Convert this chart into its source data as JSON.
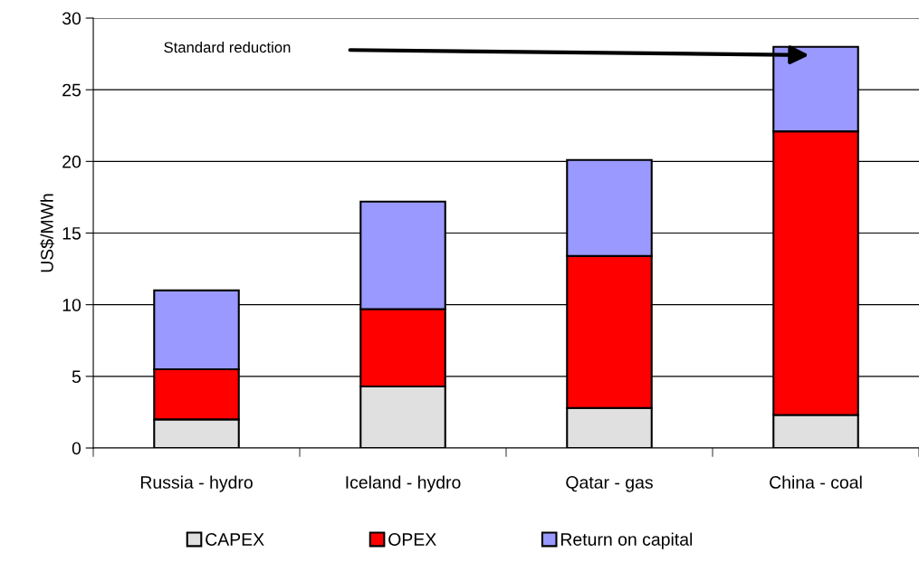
{
  "chart_data": {
    "type": "bar",
    "stacked": true,
    "ylabel": "US$/MWh",
    "categories": [
      "Russia - hydro",
      "Iceland - hydro",
      "Qatar - gas",
      "China - coal"
    ],
    "series": [
      {
        "name": "CAPEX",
        "color": "#e0e0e0",
        "values": [
          2.0,
          4.3,
          2.8,
          2.3
        ]
      },
      {
        "name": "OPEX",
        "color": "#ff0000",
        "values": [
          3.5,
          5.4,
          10.6,
          19.8
        ]
      },
      {
        "name": "Return on capital",
        "color": "#9999ff",
        "values": [
          5.5,
          7.5,
          6.7,
          5.9
        ]
      }
    ],
    "ylim": [
      0,
      30
    ],
    "yticks": [
      0,
      5,
      10,
      15,
      20,
      25,
      30
    ],
    "grid": "y",
    "legend": "bottom",
    "annotations": [
      "Standard reduction"
    ]
  }
}
